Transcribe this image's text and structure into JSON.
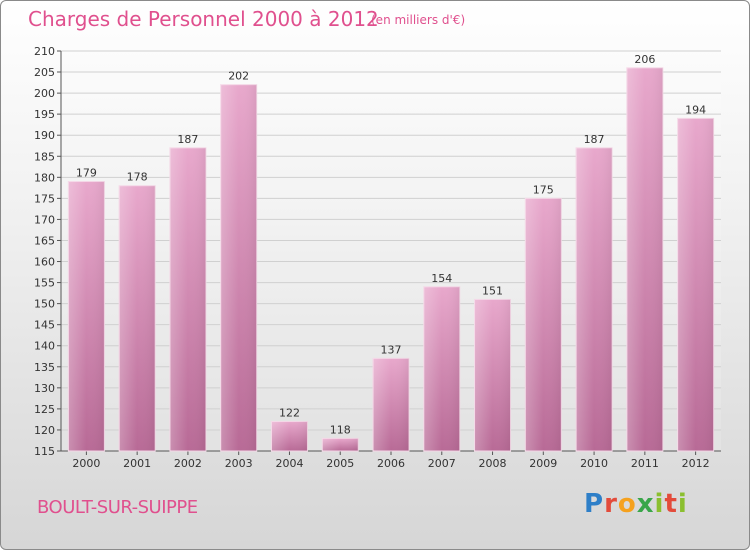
{
  "chart_data": {
    "type": "bar",
    "title": "Charges de Personnel 2000 à 2012",
    "subtitle": "(en milliers d'€)",
    "categories": [
      "2000",
      "2001",
      "2002",
      "2003",
      "2004",
      "2005",
      "2006",
      "2007",
      "2008",
      "2009",
      "2010",
      "2011",
      "2012"
    ],
    "values": [
      179,
      178,
      187,
      202,
      122,
      118,
      137,
      154,
      151,
      175,
      187,
      206,
      194
    ],
    "data_labels": [
      "179",
      "178",
      "187",
      "202",
      "122",
      "118",
      "137",
      "154",
      "151",
      "175",
      "187",
      "206",
      "194"
    ],
    "ylim": [
      115,
      210
    ],
    "yticks": [
      115,
      120,
      125,
      130,
      135,
      140,
      145,
      150,
      155,
      160,
      165,
      170,
      175,
      180,
      185,
      190,
      195,
      200,
      205,
      210
    ],
    "ytick_labels": [
      "115",
      "120",
      "125",
      "130",
      "135",
      "140",
      "145",
      "150",
      "155",
      "160",
      "165",
      "170",
      "175",
      "180",
      "185",
      "190",
      "195",
      "200",
      "205",
      "210"
    ],
    "grid": true,
    "bar_color": "#d98ab8",
    "accent_color": "#e0508e"
  },
  "footer": {
    "town": "BOULT-SUR-SUIPPE",
    "logo_letters": [
      "P",
      "r",
      "o",
      "x",
      "i",
      "t",
      "i"
    ]
  }
}
